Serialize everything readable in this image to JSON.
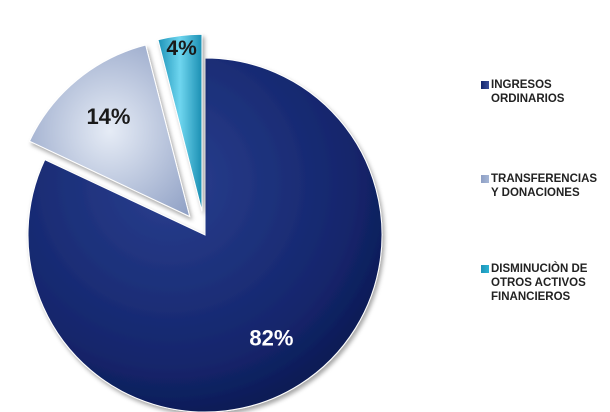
{
  "chart_data": {
    "type": "pie",
    "title": "",
    "categories": [
      "INGRESOS ORDINARIOS",
      "TRANSFERENCIAS Y DONACIONES",
      "DISMINUCIÒN DE OTROS ACTIVOS FINANCIEROS"
    ],
    "values": [
      82,
      14,
      4
    ],
    "value_labels": [
      "82%",
      "14%",
      "4%"
    ],
    "legend_position": "right",
    "exploded": true
  },
  "legend": {
    "items": [
      {
        "line1": "INGRESOS",
        "line2": "ORDINARIOS",
        "line3": ""
      },
      {
        "line1": "TRANSFERENCIAS",
        "line2": "Y DONACIONES",
        "line3": ""
      },
      {
        "line1": "DISMINUCIÒN DE",
        "line2": "OTROS ACTIVOS",
        "line3": "FINANCIEROS"
      }
    ]
  },
  "colors": {
    "slice0": "#13256b",
    "slice1": "#a5b6d6",
    "slice2": "#2bb3d3",
    "label_light": "#ffffff",
    "label_dark": "#1a1a1a"
  }
}
